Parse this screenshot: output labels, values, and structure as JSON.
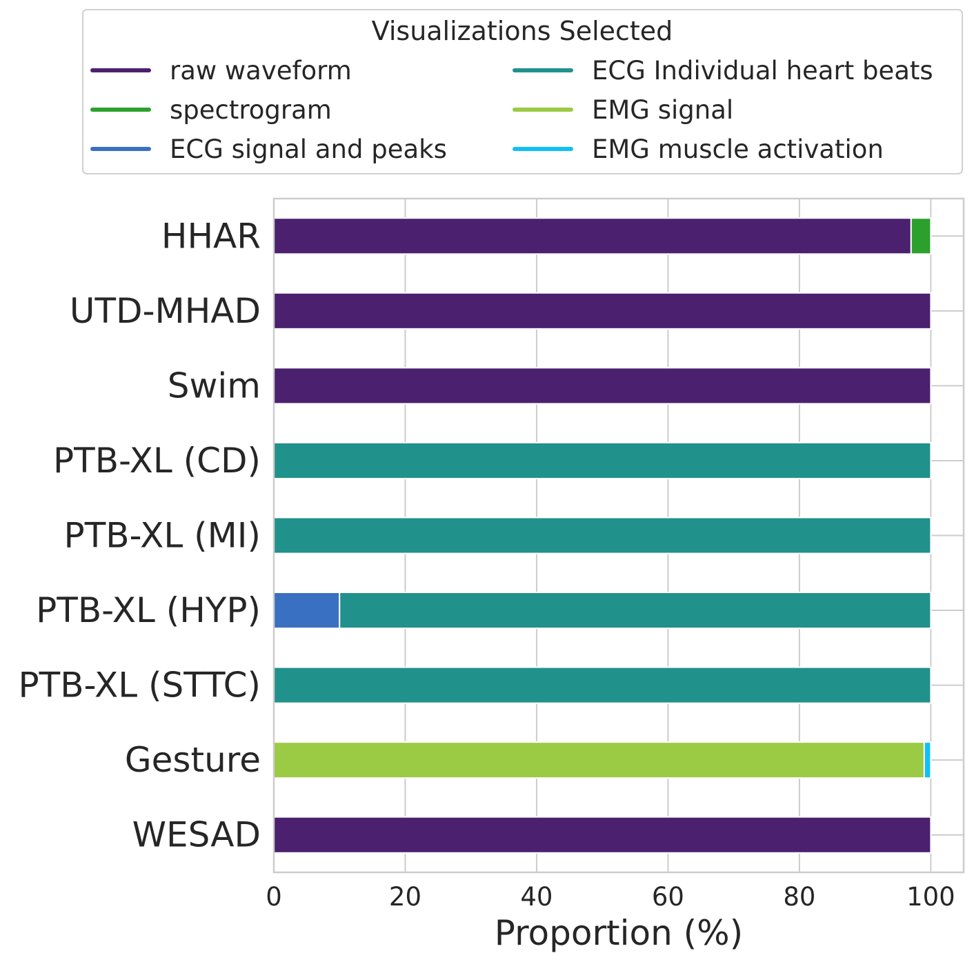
{
  "chart_data": {
    "type": "bar",
    "orientation": "horizontal",
    "stacked": true,
    "xlabel": "Proportion (%)",
    "ylabel": "",
    "xlim": [
      0,
      105
    ],
    "xticks": [
      0,
      20,
      40,
      60,
      80,
      100
    ],
    "grid": true,
    "legend": {
      "title": "Visualizations Selected",
      "placement": "top",
      "columns": 2
    },
    "categories": [
      "HHAR",
      "UTD-MHAD",
      "Swim",
      "PTB-XL (CD)",
      "PTB-XL (MI)",
      "PTB-XL (HYP)",
      "PTB-XL (STTC)",
      "Gesture",
      "WESAD"
    ],
    "series": [
      {
        "name": "raw waveform",
        "color": "#4b206e",
        "values": [
          97,
          100,
          100,
          0,
          0,
          0,
          0,
          0,
          100
        ]
      },
      {
        "name": "spectrogram",
        "color": "#2ca02c",
        "values": [
          3,
          0,
          0,
          0,
          0,
          0,
          0,
          0,
          0
        ]
      },
      {
        "name": "ECG signal and peaks",
        "color": "#3a70c2",
        "values": [
          0,
          0,
          0,
          0,
          0,
          10,
          0,
          0,
          0
        ]
      },
      {
        "name": "ECG Individual heart beats",
        "color": "#21918c",
        "values": [
          0,
          0,
          0,
          100,
          100,
          90,
          100,
          0,
          0
        ]
      },
      {
        "name": "EMG signal",
        "color": "#9bca44",
        "values": [
          0,
          0,
          0,
          0,
          0,
          0,
          0,
          99,
          0
        ]
      },
      {
        "name": "EMG muscle activation",
        "color": "#0fc0f5",
        "values": [
          0,
          0,
          0,
          0,
          0,
          0,
          0,
          1,
          0
        ]
      }
    ]
  }
}
